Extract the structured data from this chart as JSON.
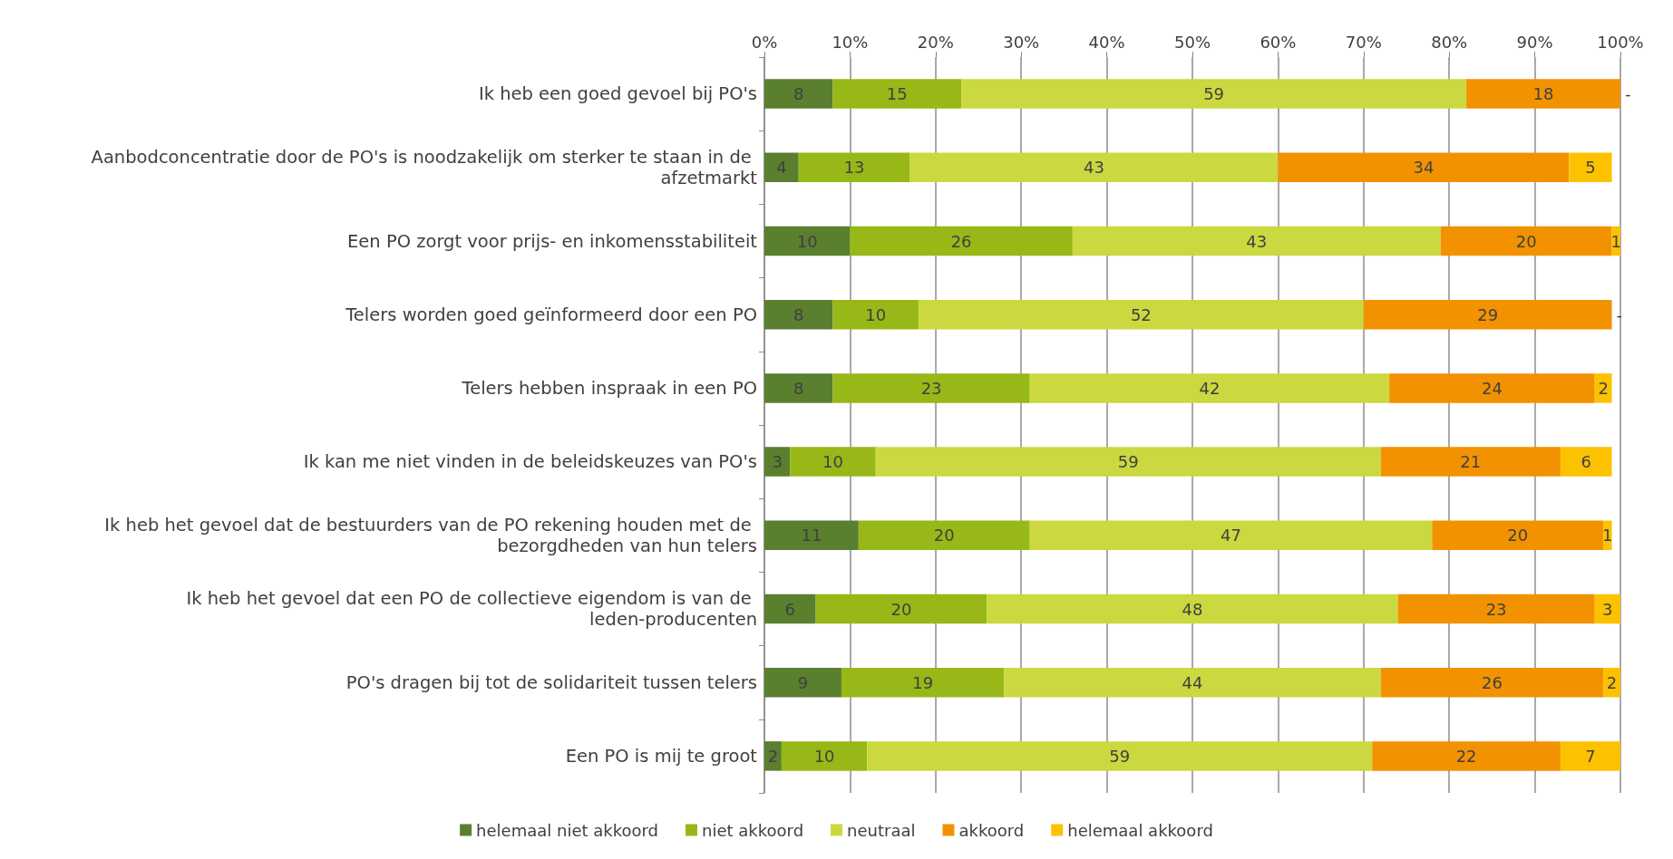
{
  "chart_data": {
    "type": "bar",
    "orientation": "horizontal",
    "stacked": true,
    "categories": [
      "Ik heb een goed gevoel bij PO's",
      "Aanbodconcentratie door de PO's is noodzakelijk om sterker te staan in de afzetmarkt",
      "Een PO zorgt voor prijs- en inkomensstabiliteit",
      "Telers worden goed geïnformeerd door een PO",
      "Telers hebben inspraak in een PO",
      "Ik kan me niet vinden in de beleidskeuzes van PO's",
      "Ik heb het gevoel dat de bestuurders van de PO rekening houden met de bezorgdheden van hun telers",
      "Ik heb het gevoel dat een PO de collectieve eigendom is van de leden-producenten",
      "PO's dragen bij tot de solidariteit tussen telers",
      "Een PO is mij te groot"
    ],
    "series": [
      {
        "name": "helemaal niet akkoord",
        "color": "#5a7f2f",
        "values": [
          8,
          4,
          10,
          8,
          8,
          3,
          11,
          6,
          9,
          2
        ],
        "value_labels": [
          "8",
          "4",
          "10",
          "8",
          "8",
          "3",
          "11",
          "6",
          "9",
          "2"
        ]
      },
      {
        "name": "niet akkoord",
        "color": "#97b817",
        "values": [
          15,
          13,
          26,
          10,
          23,
          10,
          20,
          20,
          19,
          10
        ],
        "value_labels": [
          "15",
          "13",
          "26",
          "10",
          "23",
          "10",
          "20",
          "20",
          "19",
          "10"
        ]
      },
      {
        "name": "neutraal",
        "color": "#cbd83f",
        "values": [
          59,
          43,
          43,
          52,
          42,
          59,
          47,
          48,
          44,
          59
        ],
        "value_labels": [
          "59",
          "43",
          "43",
          "52",
          "42",
          "59",
          "47",
          "48",
          "44",
          "59"
        ]
      },
      {
        "name": "akkoord",
        "color": "#f29200",
        "values": [
          18,
          34,
          20,
          29,
          24,
          21,
          20,
          23,
          26,
          22
        ],
        "value_labels": [
          "18",
          "34",
          "20",
          "29",
          "24",
          "21",
          "20",
          "23",
          "26",
          "22"
        ]
      },
      {
        "name": "helemaal akkoord",
        "color": "#fcc200",
        "values": [
          0,
          5,
          1,
          0,
          2,
          6,
          1,
          3,
          2,
          7
        ],
        "value_labels": [
          "-",
          "5",
          "1",
          "-",
          "2",
          "6",
          "1",
          "3",
          "2",
          "7"
        ]
      }
    ],
    "xlim": [
      0,
      100
    ],
    "xticks": [
      {
        "value": 0,
        "label": "0%"
      },
      {
        "value": 10,
        "label": "10%"
      },
      {
        "value": 20,
        "label": "20%"
      },
      {
        "value": 30,
        "label": "30%"
      },
      {
        "value": 40,
        "label": "40%"
      },
      {
        "value": 50,
        "label": "50%"
      },
      {
        "value": 60,
        "label": "60%"
      },
      {
        "value": 70,
        "label": "70%"
      },
      {
        "value": 80,
        "label": "80%"
      },
      {
        "value": 90,
        "label": "90%"
      },
      {
        "value": 100,
        "label": "100%"
      }
    ],
    "grid": "x",
    "legend": "bottom"
  }
}
